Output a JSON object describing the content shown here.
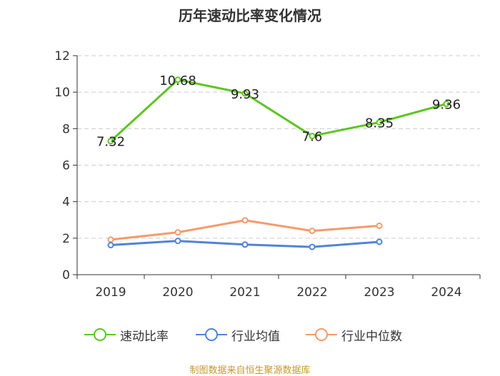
{
  "chart_data": {
    "type": "line",
    "title": "历年速动比率变化情况",
    "categories": [
      "2019",
      "2020",
      "2021",
      "2022",
      "2023",
      "2024"
    ],
    "ylim": [
      0,
      12
    ],
    "yticks": [
      0,
      2,
      4,
      6,
      8,
      10,
      12
    ],
    "grid": true,
    "legend_position": "bottom",
    "series": [
      {
        "name": "速动比率",
        "color": "#5ec522",
        "values": [
          7.32,
          10.68,
          9.93,
          7.6,
          8.35,
          9.36
        ],
        "labels": [
          "7.32",
          "10.68",
          "9.93",
          "7.6",
          "8.35",
          "9.36"
        ]
      },
      {
        "name": "行业均值",
        "color": "#5183d9",
        "values": [
          1.62,
          1.85,
          1.65,
          1.52,
          1.8,
          null
        ]
      },
      {
        "name": "行业中位数",
        "color": "#f59a6b",
        "values": [
          1.92,
          2.32,
          2.98,
          2.4,
          2.68,
          null
        ]
      }
    ]
  },
  "source_note": "制图数据来自恒生聚源数据库"
}
